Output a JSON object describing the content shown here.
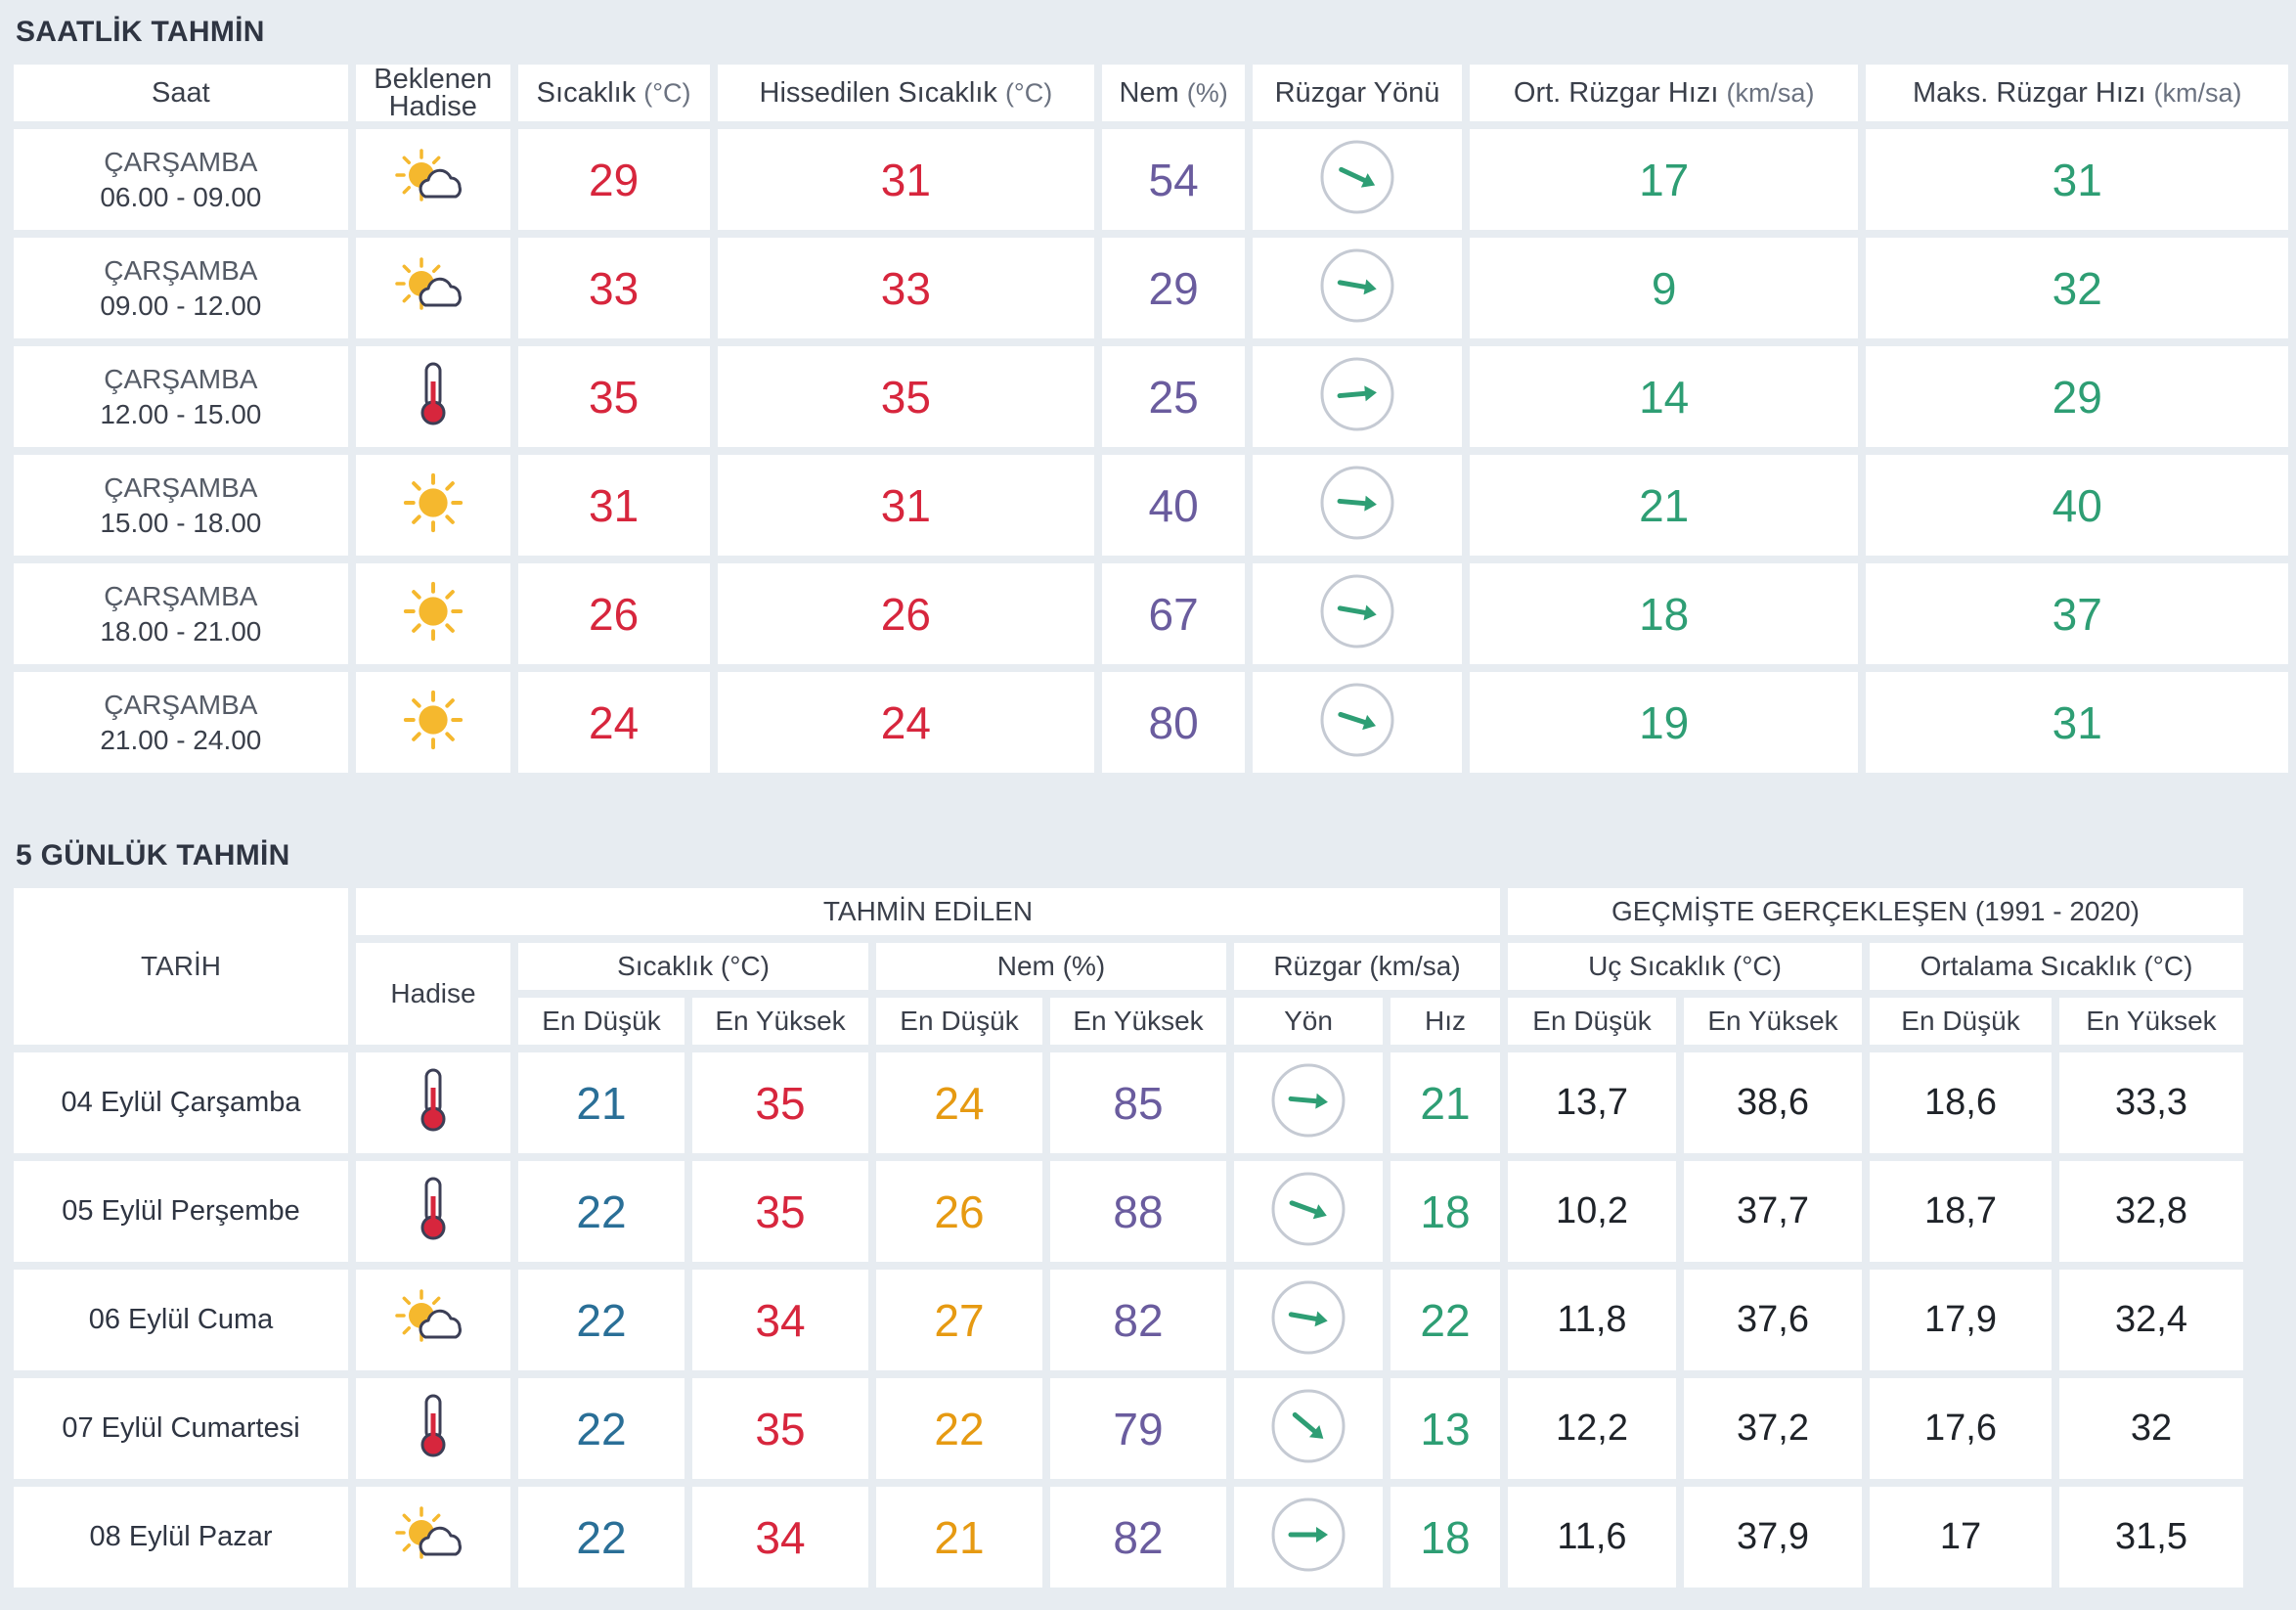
{
  "hourly": {
    "title": "SAATLİK TAHMİN",
    "headers": {
      "time": "Saat",
      "event": "Beklenen Hadise",
      "temp": "Sıcaklık",
      "temp_unit": "(°C)",
      "feels": "Hissedilen Sıcaklık",
      "feels_unit": "(°C)",
      "humidity": "Nem",
      "humidity_unit": "(%)",
      "wind_dir": "Rüzgar Yönü",
      "avg_wind": "Ort. Rüzgar Hızı",
      "avg_wind_unit": "(km/sa)",
      "max_wind": "Maks. Rüzgar Hızı",
      "max_wind_unit": "(km/sa)"
    },
    "rows": [
      {
        "day": "ÇARŞAMBA",
        "range": "06.00 - 09.00",
        "icon": "partly-cloudy-icon",
        "temp": "29",
        "feels": "31",
        "humidity": "54",
        "wind_dir_deg": 25,
        "avg": "17",
        "max": "31"
      },
      {
        "day": "ÇARŞAMBA",
        "range": "09.00 - 12.00",
        "icon": "partly-cloudy-icon",
        "temp": "33",
        "feels": "33",
        "humidity": "29",
        "wind_dir_deg": 10,
        "avg": "9",
        "max": "32"
      },
      {
        "day": "ÇARŞAMBA",
        "range": "12.00 - 15.00",
        "icon": "thermometer-icon",
        "temp": "35",
        "feels": "35",
        "humidity": "25",
        "wind_dir_deg": -5,
        "avg": "14",
        "max": "29"
      },
      {
        "day": "ÇARŞAMBA",
        "range": "15.00 - 18.00",
        "icon": "sun-icon",
        "temp": "31",
        "feels": "31",
        "humidity": "40",
        "wind_dir_deg": 5,
        "avg": "21",
        "max": "40"
      },
      {
        "day": "ÇARŞAMBA",
        "range": "18.00 - 21.00",
        "icon": "sun-icon",
        "temp": "26",
        "feels": "26",
        "humidity": "67",
        "wind_dir_deg": 10,
        "avg": "18",
        "max": "37"
      },
      {
        "day": "ÇARŞAMBA",
        "range": "21.00 - 24.00",
        "icon": "sun-icon",
        "temp": "24",
        "feels": "24",
        "humidity": "80",
        "wind_dir_deg": 18,
        "avg": "19",
        "max": "31"
      }
    ]
  },
  "daily": {
    "title": "5 GÜNLÜK TAHMİN",
    "headers": {
      "date": "TARİH",
      "forecasted": "TAHMİN EDİLEN",
      "historical": "GEÇMİŞTE GERÇEKLEŞEN (1991 - 2020)",
      "event": "Hadise",
      "temp": "Sıcaklık (°C)",
      "humidity": "Nem (%)",
      "wind": "Rüzgar (km/sa)",
      "extreme": "Uç Sıcaklık (°C)",
      "average": "Ortalama Sıcaklık (°C)",
      "min": "En Düşük",
      "max": "En Yüksek",
      "dir": "Yön",
      "speed": "Hız"
    },
    "rows": [
      {
        "date": "04 Eylül Çarşamba",
        "icon": "thermometer-icon",
        "tmin": "21",
        "tmax": "35",
        "hmin": "24",
        "hmax": "85",
        "wind_dir_deg": 5,
        "speed": "21",
        "emin": "13,7",
        "emax": "38,6",
        "amin": "18,6",
        "amax": "33,3"
      },
      {
        "date": "05 Eylül Perşembe",
        "icon": "thermometer-icon",
        "tmin": "22",
        "tmax": "35",
        "hmin": "26",
        "hmax": "88",
        "wind_dir_deg": 20,
        "speed": "18",
        "emin": "10,2",
        "emax": "37,7",
        "amin": "18,7",
        "amax": "32,8"
      },
      {
        "date": "06 Eylül Cuma",
        "icon": "partly-cloudy-icon",
        "tmin": "22",
        "tmax": "34",
        "hmin": "27",
        "hmax": "82",
        "wind_dir_deg": 10,
        "speed": "22",
        "emin": "11,8",
        "emax": "37,6",
        "amin": "17,9",
        "amax": "32,4"
      },
      {
        "date": "07 Eylül Cumartesi",
        "icon": "thermometer-icon",
        "tmin": "22",
        "tmax": "35",
        "hmin": "22",
        "hmax": "79",
        "wind_dir_deg": 40,
        "speed": "13",
        "emin": "12,2",
        "emax": "37,2",
        "amin": "17,6",
        "amax": "32"
      },
      {
        "date": "08 Eylül Pazar",
        "icon": "partly-cloudy-icon",
        "tmin": "22",
        "tmax": "34",
        "hmin": "21",
        "hmax": "82",
        "wind_dir_deg": 0,
        "speed": "18",
        "emin": "11,6",
        "emax": "37,9",
        "amin": "17",
        "amax": "31,5"
      }
    ]
  }
}
